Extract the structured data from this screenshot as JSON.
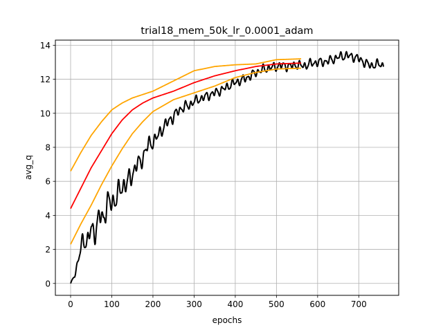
{
  "chart_data": {
    "type": "line",
    "title": "trial18_mem_50k_lr_0.0001_adam",
    "xlabel": "epochs",
    "ylabel": "avg_q",
    "xlim": [
      -37,
      797
    ],
    "ylim": [
      -0.7,
      14.3
    ],
    "xticks": [
      0,
      100,
      200,
      300,
      400,
      500,
      600,
      700
    ],
    "yticks": [
      0,
      2,
      4,
      6,
      8,
      10,
      12,
      14
    ],
    "grid": true,
    "series": [
      {
        "color": "#000000",
        "style": "noisy",
        "x": [
          0,
          10,
          20,
          30,
          40,
          50,
          60,
          70,
          80,
          90,
          100,
          110,
          120,
          130,
          140,
          150,
          160,
          170,
          180,
          190,
          200,
          210,
          220,
          230,
          240,
          250,
          260,
          270,
          280,
          290,
          300,
          310,
          320,
          330,
          340,
          350,
          360,
          370,
          380,
          390,
          400,
          410,
          420,
          430,
          440,
          450,
          460,
          470,
          480,
          490,
          500,
          510,
          520,
          530,
          540,
          550,
          560,
          570,
          580,
          590,
          600,
          610,
          620,
          630,
          640,
          650,
          660,
          670,
          680,
          690,
          700,
          710,
          720,
          730,
          740,
          750,
          760
        ],
        "y": [
          0.0,
          0.5,
          1.5,
          2.6,
          2.4,
          3.2,
          3.0,
          4.0,
          3.8,
          4.8,
          4.7,
          5.0,
          5.5,
          5.8,
          6.0,
          6.4,
          7.0,
          7.1,
          7.7,
          8.2,
          8.3,
          8.6,
          9.0,
          9.3,
          9.6,
          9.8,
          10.1,
          10.3,
          10.4,
          10.5,
          10.7,
          10.8,
          10.9,
          11.0,
          11.1,
          11.2,
          11.3,
          11.4,
          11.55,
          11.7,
          11.8,
          11.9,
          12.0,
          12.1,
          12.25,
          12.4,
          12.5,
          12.6,
          12.65,
          12.7,
          12.75,
          12.8,
          12.8,
          12.75,
          12.8,
          12.85,
          12.8,
          12.8,
          12.9,
          12.95,
          13.0,
          13.0,
          13.05,
          13.1,
          13.2,
          13.3,
          13.35,
          13.4,
          13.35,
          13.3,
          13.2,
          13.05,
          12.9,
          12.8,
          12.85,
          12.9,
          12.8
        ],
        "amplitude": [
          0.0,
          0.15,
          0.35,
          0.55,
          0.6,
          0.65,
          0.7,
          0.75,
          0.75,
          0.75,
          0.75,
          0.75,
          0.75,
          0.7,
          0.7,
          0.65,
          0.6,
          0.55,
          0.5,
          0.5,
          0.45,
          0.45,
          0.45,
          0.4,
          0.4,
          0.4,
          0.35,
          0.35,
          0.35,
          0.35,
          0.3,
          0.3,
          0.3,
          0.3,
          0.3,
          0.3,
          0.3,
          0.3,
          0.3,
          0.3,
          0.3,
          0.3,
          0.3,
          0.3,
          0.3,
          0.3,
          0.3,
          0.3,
          0.3,
          0.3,
          0.3,
          0.3,
          0.3,
          0.3,
          0.3,
          0.3,
          0.3,
          0.3,
          0.3,
          0.3,
          0.3,
          0.3,
          0.3,
          0.3,
          0.3,
          0.3,
          0.3,
          0.3,
          0.3,
          0.3,
          0.3,
          0.3,
          0.3,
          0.3,
          0.3,
          0.3,
          0.3
        ]
      },
      {
        "color": "#ff0000",
        "x": [
          0,
          25,
          50,
          75,
          100,
          125,
          150,
          175,
          200,
          250,
          300,
          350,
          400,
          450,
          500,
          560
        ],
        "y": [
          4.4,
          5.6,
          6.8,
          7.8,
          8.8,
          9.6,
          10.2,
          10.6,
          10.9,
          11.3,
          11.8,
          12.2,
          12.5,
          12.75,
          12.9,
          12.95
        ]
      },
      {
        "color": "#ffa500",
        "x": [
          0,
          25,
          50,
          75,
          100,
          125,
          150,
          175,
          200,
          250,
          300,
          350,
          400,
          450,
          500,
          560
        ],
        "y": [
          6.6,
          7.7,
          8.7,
          9.5,
          10.2,
          10.6,
          10.9,
          11.1,
          11.3,
          11.9,
          12.5,
          12.75,
          12.85,
          12.9,
          13.15,
          13.2
        ]
      },
      {
        "color": "#ffa500",
        "x": [
          0,
          25,
          50,
          75,
          100,
          125,
          150,
          175,
          200,
          250,
          300,
          350,
          400,
          450,
          500,
          560
        ],
        "y": [
          2.3,
          3.5,
          4.6,
          5.8,
          6.9,
          7.9,
          8.8,
          9.5,
          10.1,
          10.8,
          11.2,
          11.6,
          12.1,
          12.4,
          12.6,
          12.65
        ]
      }
    ]
  }
}
